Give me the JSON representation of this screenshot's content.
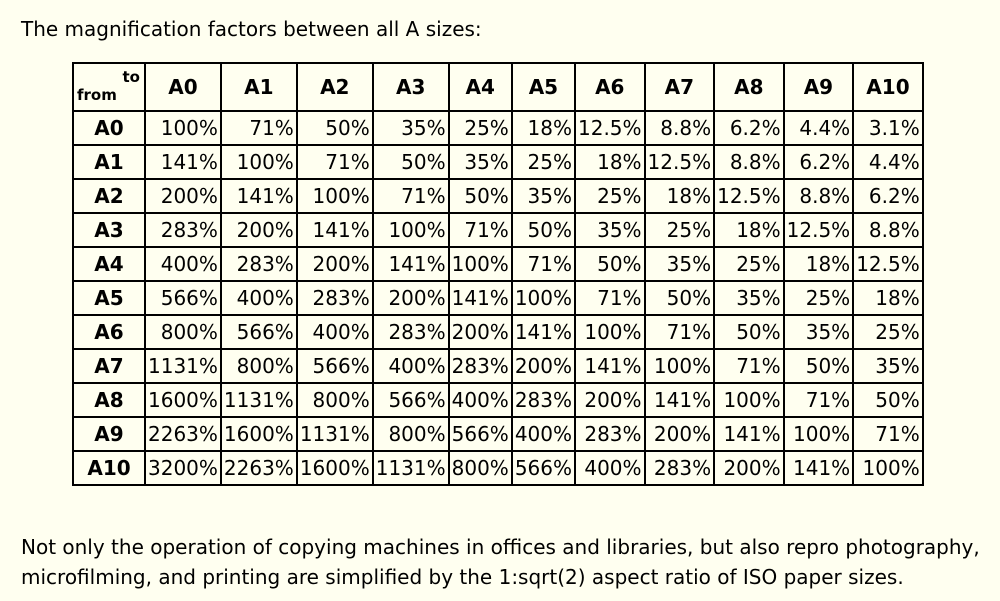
{
  "intro_text": "The magnification factors between all A sizes:",
  "table": {
    "corner_to": "to",
    "corner_from": "from",
    "columns": [
      "A0",
      "A1",
      "A2",
      "A3",
      "A4",
      "A5",
      "A6",
      "A7",
      "A8",
      "A9",
      "A10"
    ],
    "rows": [
      {
        "label": "A0",
        "cells": [
          "100%",
          "71%",
          "50%",
          "35%",
          "25%",
          "18%",
          "12.5%",
          "8.8%",
          "6.2%",
          "4.4%",
          "3.1%"
        ]
      },
      {
        "label": "A1",
        "cells": [
          "141%",
          "100%",
          "71%",
          "50%",
          "35%",
          "25%",
          "18%",
          "12.5%",
          "8.8%",
          "6.2%",
          "4.4%"
        ]
      },
      {
        "label": "A2",
        "cells": [
          "200%",
          "141%",
          "100%",
          "71%",
          "50%",
          "35%",
          "25%",
          "18%",
          "12.5%",
          "8.8%",
          "6.2%"
        ]
      },
      {
        "label": "A3",
        "cells": [
          "283%",
          "200%",
          "141%",
          "100%",
          "71%",
          "50%",
          "35%",
          "25%",
          "18%",
          "12.5%",
          "8.8%"
        ]
      },
      {
        "label": "A4",
        "cells": [
          "400%",
          "283%",
          "200%",
          "141%",
          "100%",
          "71%",
          "50%",
          "35%",
          "25%",
          "18%",
          "12.5%"
        ]
      },
      {
        "label": "A5",
        "cells": [
          "566%",
          "400%",
          "283%",
          "200%",
          "141%",
          "100%",
          "71%",
          "50%",
          "35%",
          "25%",
          "18%"
        ]
      },
      {
        "label": "A6",
        "cells": [
          "800%",
          "566%",
          "400%",
          "283%",
          "200%",
          "141%",
          "100%",
          "71%",
          "50%",
          "35%",
          "25%"
        ]
      },
      {
        "label": "A7",
        "cells": [
          "1131%",
          "800%",
          "566%",
          "400%",
          "283%",
          "200%",
          "141%",
          "100%",
          "71%",
          "50%",
          "35%"
        ]
      },
      {
        "label": "A8",
        "cells": [
          "1600%",
          "1131%",
          "800%",
          "566%",
          "400%",
          "283%",
          "200%",
          "141%",
          "100%",
          "71%",
          "50%"
        ]
      },
      {
        "label": "A9",
        "cells": [
          "2263%",
          "1600%",
          "1131%",
          "800%",
          "566%",
          "400%",
          "283%",
          "200%",
          "141%",
          "100%",
          "71%"
        ]
      },
      {
        "label": "A10",
        "cells": [
          "3200%",
          "2263%",
          "1600%",
          "1131%",
          "800%",
          "566%",
          "400%",
          "283%",
          "200%",
          "141%",
          "100%"
        ]
      }
    ]
  },
  "outro_text": "Not only the operation of copying machines in offices and libraries, but also repro photography, microfilming, and printing are simplified by the 1:sqrt(2) aspect ratio of ISO paper sizes.",
  "colors": {
    "background": "#fffff0",
    "text": "#000000",
    "border": "#000000"
  }
}
